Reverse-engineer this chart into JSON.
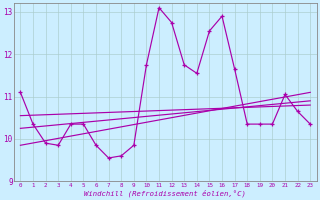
{
  "xlabel": "Windchill (Refroidissement éolien,°C)",
  "xlim": [
    -0.5,
    23.5
  ],
  "ylim": [
    9,
    13.2
  ],
  "yticks": [
    9,
    10,
    11,
    12,
    13
  ],
  "xticks": [
    0,
    1,
    2,
    3,
    4,
    5,
    6,
    7,
    8,
    9,
    10,
    11,
    12,
    13,
    14,
    15,
    16,
    17,
    18,
    19,
    20,
    21,
    22,
    23
  ],
  "background_color": "#cceeff",
  "grid_color": "#aacccc",
  "line_color": "#aa00aa",
  "line1": [
    11.1,
    10.35,
    9.9,
    9.85,
    10.35,
    10.35,
    9.85,
    9.55,
    9.6,
    9.85,
    11.75,
    13.1,
    12.75,
    11.75,
    11.55,
    12.55,
    12.9,
    11.65,
    10.35,
    10.35,
    10.35,
    11.05,
    10.65,
    10.35
  ],
  "trend1_x": [
    0,
    23
  ],
  "trend1_y": [
    10.55,
    10.8
  ],
  "trend2_x": [
    0,
    23
  ],
  "trend2_y": [
    10.25,
    10.9
  ],
  "trend3_x": [
    0,
    23
  ],
  "trend3_y": [
    9.85,
    11.1
  ]
}
